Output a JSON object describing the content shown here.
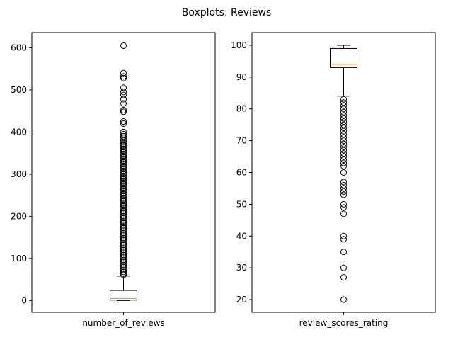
{
  "figure_title": "Boxplots: Reviews",
  "colors": {
    "box": "#000000",
    "median": "#ff7f0e",
    "outlier": "#000000"
  },
  "chart_data": [
    {
      "type": "boxplot",
      "category": "number_of_reviews",
      "ylim": [
        -28,
        636
      ],
      "yticks": [
        0,
        100,
        200,
        300,
        400,
        500,
        600
      ],
      "box": {
        "whisker_low": 0,
        "q1": 1,
        "median": 5,
        "q3": 24,
        "whisker_high": 58
      },
      "outliers": [
        605,
        540,
        532,
        528,
        505,
        495,
        488,
        478,
        468,
        452,
        448,
        425,
        420,
        400,
        395,
        390,
        386,
        380,
        376,
        372,
        368,
        364,
        360,
        356,
        352,
        348,
        344,
        340,
        336,
        332,
        328,
        324,
        320,
        316,
        312,
        308,
        304,
        300,
        296,
        292,
        288,
        284,
        280,
        276,
        272,
        268,
        264,
        260,
        256,
        252,
        248,
        244,
        240,
        236,
        232,
        228,
        224,
        220,
        216,
        212,
        208,
        204,
        200,
        196,
        192,
        188,
        184,
        180,
        176,
        172,
        168,
        164,
        160,
        156,
        152,
        148,
        144,
        140,
        136,
        132,
        128,
        124,
        120,
        116,
        112,
        108,
        104,
        100,
        96,
        92,
        88,
        84,
        80,
        76,
        72,
        68,
        64,
        61
      ]
    },
    {
      "type": "boxplot",
      "category": "review_scores_rating",
      "ylim": [
        16,
        104
      ],
      "yticks": [
        20,
        30,
        40,
        50,
        60,
        70,
        80,
        90,
        100
      ],
      "box": {
        "whisker_low": 84,
        "q1": 93,
        "median": 94,
        "q3": 99,
        "whisker_high": 100
      },
      "outliers": [
        83,
        82,
        81,
        80,
        79,
        78,
        77,
        76,
        75,
        74,
        73,
        72,
        71,
        70,
        69,
        68,
        67,
        66,
        65,
        64,
        63,
        62,
        60,
        57,
        56,
        55,
        54,
        53,
        50,
        49,
        47,
        40,
        39,
        35,
        30,
        27,
        20
      ]
    }
  ]
}
